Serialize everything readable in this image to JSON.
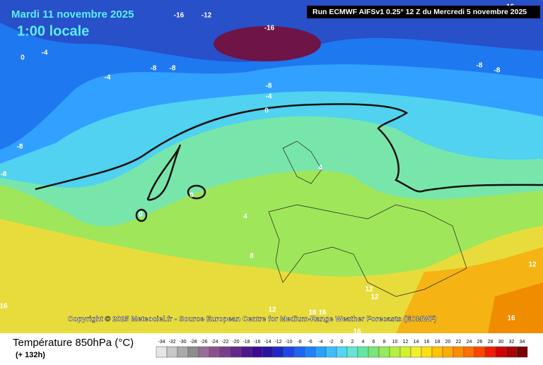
{
  "header": {
    "date": "Mardi 11 novembre 2025",
    "time": "1:00 locale",
    "run": "Run ECMWF AIFSv1 0.25° 12 Z du Mercredi 5 novembre 2025"
  },
  "copyright": "Copyright © 2025 Meteociel.fr - Source European Centre for Medium-Range Weather Forecasts (ECMWF)",
  "contour_labels": [
    "-16",
    "-12",
    "-16",
    "-16",
    "0",
    "-4",
    "-8",
    "-8",
    "-4",
    "-8",
    "-4",
    "0",
    "-8",
    "-8",
    "-8",
    "-8",
    "4",
    "0",
    "0",
    "4",
    "8",
    "12",
    "12",
    "12",
    "16",
    "12",
    "16",
    "16",
    "16",
    "16"
  ],
  "legend": {
    "title": "Température 850hPa (°C)",
    "lead": "(+ 132h)",
    "scale": [
      -34,
      -32,
      -30,
      -28,
      -26,
      -24,
      -22,
      -20,
      -18,
      -16,
      -14,
      -12,
      -10,
      -8,
      -6,
      -4,
      -2,
      0,
      2,
      4,
      6,
      8,
      10,
      12,
      14,
      16,
      18,
      20,
      22,
      24,
      26,
      28,
      30,
      32,
      34
    ],
    "colors": [
      "#e6e6e6",
      "#c8c8c8",
      "#aaaaaa",
      "#8c8c8c",
      "#966e96",
      "#8c508c",
      "#783c8c",
      "#64288c",
      "#50148c",
      "#3c0a96",
      "#2814a0",
      "#1e28c8",
      "#1e46e6",
      "#1e64f5",
      "#1e82ff",
      "#28a0ff",
      "#3cbeff",
      "#50d7f5",
      "#64e6d2",
      "#64e6a0",
      "#78e678",
      "#96eb5a",
      "#b4f03c",
      "#d2f032",
      "#f0f028",
      "#ffdc14",
      "#ffc300",
      "#ffaa00",
      "#ff8c00",
      "#ff6e00",
      "#ff4600",
      "#f01e00",
      "#d20000",
      "#aa0000",
      "#780000"
    ]
  }
}
